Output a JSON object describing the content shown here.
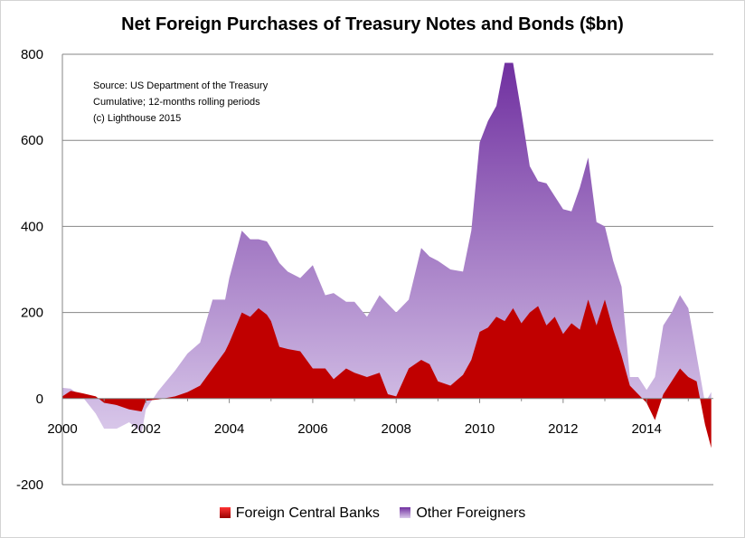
{
  "chart_data": {
    "type": "area",
    "title": "Net Foreign Purchases of Treasury Notes and Bonds ($bn)",
    "notes": [
      "Source: US Department of the Treasury",
      "Cumulative; 12-months rolling periods",
      "(c) Lighthouse 2015"
    ],
    "xlabel": "",
    "ylabel": "",
    "xlim": [
      2000,
      2015.6
    ],
    "ylim": [
      -200,
      800
    ],
    "x_ticks": [
      "2000",
      "2002",
      "2004",
      "2006",
      "2008",
      "2010",
      "2012",
      "2014"
    ],
    "y_ticks": [
      "-200",
      "0",
      "200",
      "400",
      "600",
      "800"
    ],
    "grid": "horizontal",
    "legend": "bottom",
    "stacked": true,
    "colors": {
      "Foreign Central Banks": "#c00000",
      "Other Foreigners": "#9966cc"
    },
    "series": [
      {
        "name": "Foreign Central Banks",
        "points": [
          [
            2000,
            5
          ],
          [
            2000.2,
            18
          ],
          [
            2000.5,
            12
          ],
          [
            2000.8,
            5
          ],
          [
            2001,
            -10
          ],
          [
            2001.3,
            -15
          ],
          [
            2001.6,
            -25
          ],
          [
            2001.9,
            -30
          ],
          [
            2002,
            -5
          ],
          [
            2002.3,
            -2
          ],
          [
            2002.7,
            5
          ],
          [
            2003,
            15
          ],
          [
            2003.3,
            30
          ],
          [
            2003.6,
            70
          ],
          [
            2003.9,
            110
          ],
          [
            2004,
            130
          ],
          [
            2004.3,
            200
          ],
          [
            2004.5,
            190
          ],
          [
            2004.7,
            210
          ],
          [
            2004.9,
            195
          ],
          [
            2005,
            180
          ],
          [
            2005.2,
            120
          ],
          [
            2005.4,
            115
          ],
          [
            2005.7,
            110
          ],
          [
            2006,
            70
          ],
          [
            2006.3,
            70
          ],
          [
            2006.5,
            45
          ],
          [
            2006.8,
            70
          ],
          [
            2007,
            60
          ],
          [
            2007.3,
            50
          ],
          [
            2007.6,
            60
          ],
          [
            2007.8,
            10
          ],
          [
            2008,
            5
          ],
          [
            2008.3,
            70
          ],
          [
            2008.6,
            90
          ],
          [
            2008.8,
            80
          ],
          [
            2009,
            40
          ],
          [
            2009.3,
            30
          ],
          [
            2009.6,
            55
          ],
          [
            2009.8,
            90
          ],
          [
            2010,
            155
          ],
          [
            2010.2,
            165
          ],
          [
            2010.4,
            190
          ],
          [
            2010.6,
            180
          ],
          [
            2010.8,
            210
          ],
          [
            2011,
            175
          ],
          [
            2011.2,
            200
          ],
          [
            2011.4,
            215
          ],
          [
            2011.6,
            170
          ],
          [
            2011.8,
            190
          ],
          [
            2012,
            150
          ],
          [
            2012.2,
            175
          ],
          [
            2012.4,
            160
          ],
          [
            2012.6,
            230
          ],
          [
            2012.8,
            170
          ],
          [
            2013,
            230
          ],
          [
            2013.2,
            160
          ],
          [
            2013.4,
            100
          ],
          [
            2013.6,
            30
          ],
          [
            2013.8,
            10
          ],
          [
            2014,
            -10
          ],
          [
            2014.2,
            -50
          ],
          [
            2014.4,
            10
          ],
          [
            2014.6,
            40
          ],
          [
            2014.8,
            70
          ],
          [
            2015,
            50
          ],
          [
            2015.2,
            40
          ],
          [
            2015.4,
            -60
          ],
          [
            2015.55,
            -115
          ]
        ]
      },
      {
        "name": "Other Foreigners",
        "points": [
          [
            2000,
            20
          ],
          [
            2000.2,
            5
          ],
          [
            2000.5,
            -10
          ],
          [
            2000.8,
            -40
          ],
          [
            2001,
            -60
          ],
          [
            2001.3,
            -55
          ],
          [
            2001.6,
            -30
          ],
          [
            2001.9,
            -50
          ],
          [
            2002,
            -20
          ],
          [
            2002.3,
            20
          ],
          [
            2002.7,
            60
          ],
          [
            2003,
            90
          ],
          [
            2003.3,
            100
          ],
          [
            2003.6,
            160
          ],
          [
            2003.9,
            120
          ],
          [
            2004,
            150
          ],
          [
            2004.3,
            190
          ],
          [
            2004.5,
            180
          ],
          [
            2004.7,
            160
          ],
          [
            2004.9,
            170
          ],
          [
            2005,
            170
          ],
          [
            2005.2,
            195
          ],
          [
            2005.4,
            180
          ],
          [
            2005.7,
            170
          ],
          [
            2006,
            240
          ],
          [
            2006.3,
            170
          ],
          [
            2006.5,
            200
          ],
          [
            2006.8,
            155
          ],
          [
            2007,
            165
          ],
          [
            2007.3,
            140
          ],
          [
            2007.6,
            180
          ],
          [
            2007.8,
            210
          ],
          [
            2008,
            195
          ],
          [
            2008.3,
            160
          ],
          [
            2008.6,
            260
          ],
          [
            2008.8,
            250
          ],
          [
            2009,
            280
          ],
          [
            2009.3,
            270
          ],
          [
            2009.6,
            240
          ],
          [
            2009.8,
            300
          ],
          [
            2010,
            440
          ],
          [
            2010.2,
            480
          ],
          [
            2010.4,
            490
          ],
          [
            2010.6,
            600
          ],
          [
            2010.8,
            570
          ],
          [
            2011,
            490
          ],
          [
            2011.2,
            340
          ],
          [
            2011.4,
            290
          ],
          [
            2011.6,
            330
          ],
          [
            2011.8,
            280
          ],
          [
            2012,
            290
          ],
          [
            2012.2,
            260
          ],
          [
            2012.4,
            330
          ],
          [
            2012.6,
            330
          ],
          [
            2012.8,
            240
          ],
          [
            2013,
            170
          ],
          [
            2013.2,
            160
          ],
          [
            2013.4,
            160
          ],
          [
            2013.6,
            20
          ],
          [
            2013.8,
            40
          ],
          [
            2014,
            30
          ],
          [
            2014.2,
            100
          ],
          [
            2014.4,
            160
          ],
          [
            2014.6,
            160
          ],
          [
            2014.8,
            170
          ],
          [
            2015,
            160
          ],
          [
            2015.2,
            60
          ],
          [
            2015.4,
            50
          ],
          [
            2015.55,
            130
          ]
        ]
      }
    ]
  }
}
